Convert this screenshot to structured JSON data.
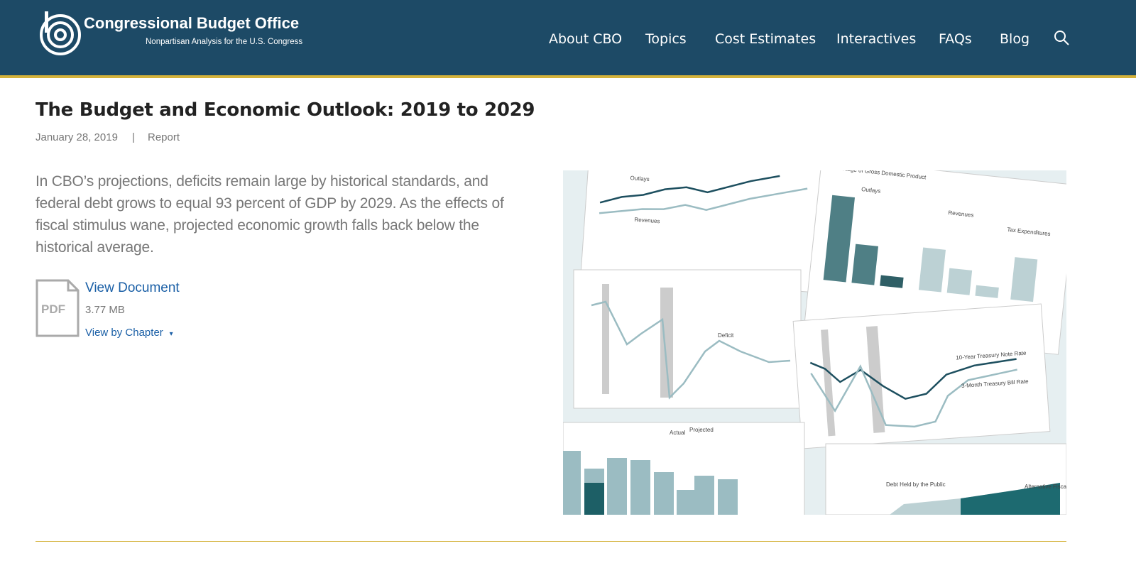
{
  "header": {
    "title": "Congressional Budget Office",
    "subtitle": "Nonpartisan Analysis for the U.S. Congress",
    "nav": [
      "About CBO",
      "Topics",
      "Cost Estimates",
      "Interactives",
      "FAQs",
      "Blog"
    ]
  },
  "article": {
    "title": "The Budget and Economic Outlook: 2019 to 2029",
    "date": "January 28, 2019",
    "separator": "|",
    "type": "Report",
    "summary": "In CBO’s projections, deficits remain large by historical standards, and federal debt grows to equal 93 percent of GDP by 2029. As the effects of fiscal stimulus wane, projected economic growth falls back below the historical average.",
    "document": {
      "icon_label": "PDF",
      "link": "View Document",
      "size": "3.77 MB",
      "chapters": "View by Chapter"
    }
  },
  "collage": {
    "labels": [
      "Outlays",
      "Revenues",
      "Percentage of Gross Domestic Product",
      "Outlays",
      "Revenues",
      "Tax Expenditures",
      "Deficit",
      "10-Year Treasury Note Rate",
      "3-Month Treasury Bill Rate",
      "Debt Held by the Public",
      "Alternative Fiscal Scenario",
      "Actual",
      "Projected"
    ]
  }
}
